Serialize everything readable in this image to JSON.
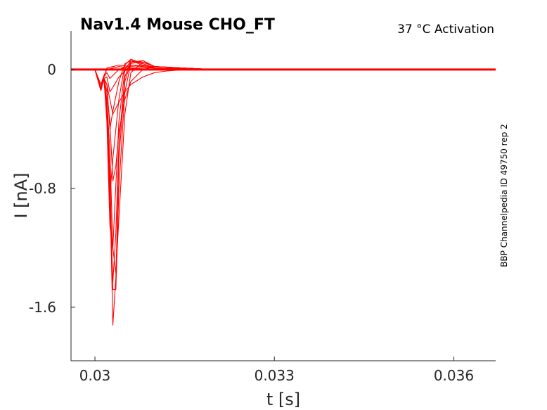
{
  "chart_data": {
    "type": "line",
    "title": "Nav1.4  Mouse  CHO_FT",
    "condition": "37 °C  Activation",
    "side_label": "BBP Channelpedia ID 49750 rep 2",
    "xlabel": "t [s]",
    "ylabel": "I [nA]",
    "xlim": [
      0.0296,
      0.0367
    ],
    "ylim": [
      -1.96,
      0.26
    ],
    "xticks": [
      {
        "value": 0.03,
        "label": "0.03"
      },
      {
        "value": 0.033,
        "label": "0.033"
      },
      {
        "value": 0.036,
        "label": "0.036"
      }
    ],
    "yticks": [
      {
        "value": 0,
        "label": "0"
      },
      {
        "value": -0.8,
        "label": "-0.8"
      },
      {
        "value": -1.6,
        "label": "-1.6"
      }
    ],
    "grid": false,
    "line_color": "#ff0000",
    "baseline_x": [
      0.0296,
      0.0367
    ],
    "series": [
      {
        "x": [
          0.0296,
          0.03,
          0.03005,
          0.0301,
          0.03015,
          0.0302,
          0.0303,
          0.0304,
          0.0306,
          0.031,
          0.032,
          0.0367
        ],
        "y": [
          0,
          0,
          -0.05,
          -0.1,
          -0.04,
          0,
          0.01,
          0.02,
          0.01,
          0,
          0,
          0
        ]
      },
      {
        "x": [
          0.0296,
          0.03,
          0.03005,
          0.0301,
          0.03015,
          0.0302,
          0.0303,
          0.0304,
          0.0306,
          0.031,
          0.032,
          0.0367
        ],
        "y": [
          0,
          0,
          -0.06,
          -0.12,
          -0.05,
          0.01,
          0.02,
          0.03,
          0.02,
          0.01,
          0,
          0
        ]
      },
      {
        "x": [
          0.0296,
          0.03,
          0.03005,
          0.0301,
          0.03015,
          0.0302,
          0.03025,
          0.0303,
          0.0304,
          0.0306,
          0.031,
          0.032,
          0.0367
        ],
        "y": [
          0,
          0,
          -0.06,
          -0.12,
          -0.05,
          -0.02,
          -0.06,
          -0.04,
          0,
          0.03,
          0.01,
          0,
          0
        ]
      },
      {
        "x": [
          0.0296,
          0.03,
          0.03005,
          0.0301,
          0.03015,
          0.0302,
          0.03025,
          0.0303,
          0.0304,
          0.0306,
          0.031,
          0.032,
          0.0367
        ],
        "y": [
          0,
          0,
          -0.07,
          -0.14,
          -0.06,
          -0.05,
          -0.15,
          -0.12,
          -0.05,
          0.03,
          0.02,
          0,
          0
        ]
      },
      {
        "x": [
          0.0296,
          0.03,
          0.03005,
          0.0301,
          0.03015,
          0.0302,
          0.03025,
          0.0303,
          0.0304,
          0.0305,
          0.0306,
          0.0308,
          0.031,
          0.032,
          0.0367
        ],
        "y": [
          0,
          0,
          -0.07,
          -0.14,
          -0.06,
          -0.1,
          -0.4,
          -0.28,
          -0.08,
          0.04,
          0.06,
          0.03,
          0.01,
          0,
          0
        ]
      },
      {
        "x": [
          0.0296,
          0.03,
          0.03005,
          0.0301,
          0.03015,
          0.0302,
          0.03025,
          0.0303,
          0.0304,
          0.0305,
          0.0306,
          0.0308,
          0.031,
          0.032,
          0.0367
        ],
        "y": [
          0,
          0,
          -0.07,
          -0.14,
          -0.06,
          -0.25,
          -0.85,
          -0.6,
          -0.2,
          0.03,
          0.07,
          0.04,
          0.01,
          0,
          0
        ]
      },
      {
        "x": [
          0.0296,
          0.03,
          0.03005,
          0.0301,
          0.03015,
          0.0302,
          0.03025,
          0.0303,
          0.0304,
          0.0305,
          0.0306,
          0.0308,
          0.031,
          0.032,
          0.0367
        ],
        "y": [
          0,
          0,
          -0.07,
          -0.14,
          -0.06,
          -0.35,
          -1.05,
          -1.2,
          -0.35,
          0.0,
          0.06,
          0.04,
          0.01,
          0,
          0
        ]
      },
      {
        "x": [
          0.0296,
          0.03,
          0.03005,
          0.0301,
          0.03015,
          0.0302,
          0.03025,
          0.0303,
          0.03035,
          0.0304,
          0.0305,
          0.0306,
          0.0308,
          0.031,
          0.032,
          0.0367
        ],
        "y": [
          0,
          0,
          -0.07,
          -0.14,
          -0.06,
          -0.3,
          -0.9,
          -1.43,
          -1.1,
          -0.5,
          -0.05,
          0.06,
          0.05,
          0.02,
          0,
          0
        ]
      },
      {
        "x": [
          0.0296,
          0.03,
          0.03005,
          0.0301,
          0.03015,
          0.0302,
          0.03025,
          0.0303,
          0.03035,
          0.0304,
          0.0305,
          0.0306,
          0.0308,
          0.031,
          0.032,
          0.0367
        ],
        "y": [
          0,
          0,
          -0.07,
          -0.14,
          -0.06,
          -0.25,
          -0.8,
          -1.72,
          -1.4,
          -0.6,
          -0.08,
          0.05,
          0.06,
          0.02,
          0,
          0
        ]
      },
      {
        "x": [
          0.0296,
          0.03,
          0.03005,
          0.0301,
          0.03015,
          0.0302,
          0.03025,
          0.0303,
          0.03035,
          0.0304,
          0.0305,
          0.0306,
          0.0308,
          0.031,
          0.032,
          0.0367
        ],
        "y": [
          0,
          0,
          -0.07,
          -0.14,
          -0.06,
          -0.22,
          -0.7,
          -1.48,
          -1.48,
          -0.8,
          -0.15,
          0.04,
          0.06,
          0.02,
          0,
          0
        ]
      },
      {
        "x": [
          0.0296,
          0.03,
          0.03005,
          0.0301,
          0.03015,
          0.0302,
          0.03025,
          0.0303,
          0.03035,
          0.0304,
          0.0305,
          0.0306,
          0.0308,
          0.031,
          0.032,
          0.0367
        ],
        "y": [
          0,
          0,
          -0.07,
          -0.14,
          -0.06,
          -0.2,
          -0.55,
          -1.2,
          -1.37,
          -1.0,
          -0.3,
          -0.02,
          0.05,
          0.02,
          0,
          0
        ]
      },
      {
        "x": [
          0.0296,
          0.03,
          0.03005,
          0.0301,
          0.03015,
          0.0302,
          0.03025,
          0.0303,
          0.03035,
          0.0304,
          0.0305,
          0.0306,
          0.0308,
          0.031,
          0.0315,
          0.032,
          0.0367
        ],
        "y": [
          0,
          0,
          -0.07,
          -0.14,
          -0.06,
          -0.15,
          -0.35,
          -0.75,
          -0.65,
          -0.42,
          -0.2,
          -0.08,
          0.0,
          0.02,
          0.01,
          0,
          0
        ]
      },
      {
        "x": [
          0.0296,
          0.03,
          0.03005,
          0.0301,
          0.03015,
          0.0302,
          0.03025,
          0.0303,
          0.0304,
          0.0305,
          0.0306,
          0.0308,
          0.031,
          0.0312,
          0.0315,
          0.032,
          0.0367
        ],
        "y": [
          0,
          0,
          -0.07,
          -0.14,
          -0.06,
          -0.1,
          -0.2,
          -0.3,
          -0.22,
          -0.15,
          -0.1,
          -0.05,
          -0.02,
          -0.01,
          0.0,
          0,
          0
        ]
      }
    ]
  }
}
